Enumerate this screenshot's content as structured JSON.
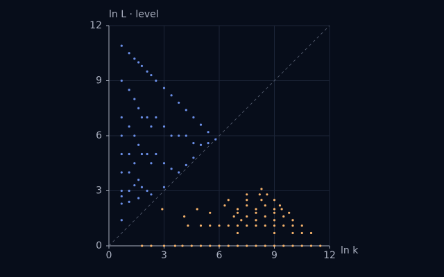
{
  "chart_data": {
    "type": "scatter",
    "x_label": "ln k",
    "y_label": "ln L · level",
    "xlim": [
      0,
      12
    ],
    "ylim": [
      0,
      12
    ],
    "xticks": [
      0,
      3,
      6,
      9,
      12
    ],
    "yticks": [
      0,
      3,
      6,
      9,
      12
    ],
    "grid": true,
    "diagonal": true,
    "series": [
      {
        "color": "#6b8fe8",
        "x": [
          0.69,
          0.69,
          0.69,
          0.69,
          0.69,
          0.69,
          0.69,
          0.69,
          0.69,
          0.69,
          1.1,
          1.1,
          1.1,
          1.1,
          1.1,
          1.1,
          1.1,
          1.39,
          1.39,
          1.39,
          1.39,
          1.39,
          1.61,
          1.61,
          1.61,
          1.61,
          1.61,
          1.79,
          1.79,
          1.79,
          1.79,
          2.08,
          2.08,
          2.08,
          2.08,
          2.3,
          2.3,
          2.3,
          2.3,
          2.56,
          2.56,
          2.56,
          3,
          3,
          3,
          3,
          3.4,
          3.4,
          3.4,
          3.8,
          3.8,
          3.8,
          4.2,
          4.2,
          4.2,
          4.6,
          4.6,
          4.6,
          5,
          5,
          5.4,
          5.4,
          5.8
        ],
        "y": [
          10.9,
          9,
          7,
          6,
          5,
          4,
          3,
          2.7,
          2.3,
          1.4,
          10.5,
          8.5,
          6.5,
          5,
          4,
          3,
          2.4,
          10.2,
          8,
          6,
          4.5,
          3.3,
          10,
          7.5,
          5.5,
          3.6,
          2.6,
          9.8,
          7,
          5,
          3.2,
          9.5,
          7,
          5,
          3,
          9.3,
          6.5,
          4.5,
          2.8,
          9,
          7,
          5,
          8.6,
          6.5,
          4.5,
          3.2,
          8.2,
          6,
          4.2,
          7.8,
          6,
          4,
          7.4,
          6,
          4.4,
          7,
          5.6,
          4.8,
          6.6,
          5.5,
          6.2,
          5.6,
          5.8
        ]
      },
      {
        "color": "#f5b26b",
        "x": [
          1.8,
          2.3,
          3,
          3.6,
          4,
          4.5,
          5,
          5.5,
          6,
          6.5,
          7,
          7.5,
          8,
          8.5,
          9,
          9.5,
          10,
          10.5,
          11,
          11.5,
          7,
          9,
          10,
          10.5,
          11,
          4.3,
          5,
          5.5,
          6,
          6.5,
          7,
          7.5,
          8,
          8.5,
          9,
          9.5,
          10,
          10.5,
          7.2,
          8,
          9,
          10,
          4.1,
          6.8,
          7.5,
          8.5,
          9.5,
          5.5,
          7,
          8,
          9,
          9.8,
          2.9,
          4.8,
          7,
          8,
          9,
          9.4,
          6.3,
          7.5,
          8.5,
          9.3,
          6.5,
          7.5,
          8.3,
          9,
          7.5,
          8.2,
          8.6,
          8.3
        ],
        "y": [
          0,
          0,
          0,
          0,
          0,
          0,
          0,
          0,
          0,
          0,
          0,
          0,
          0,
          0,
          0,
          0,
          0,
          0,
          0,
          0,
          0.7,
          0.7,
          0.7,
          0.7,
          0.7,
          1.1,
          1.1,
          1.1,
          1.1,
          1.1,
          1.1,
          1.1,
          1.1,
          1.1,
          1.1,
          1.1,
          1.1,
          1.1,
          1.4,
          1.4,
          1.4,
          1.4,
          1.6,
          1.6,
          1.6,
          1.6,
          1.6,
          1.8,
          1.8,
          1.8,
          1.8,
          1.8,
          2,
          2,
          2,
          2,
          2,
          2,
          2.2,
          2.2,
          2.2,
          2.2,
          2.5,
          2.5,
          2.5,
          2.5,
          2.8,
          2.8,
          2.8,
          3.1
        ]
      }
    ]
  }
}
